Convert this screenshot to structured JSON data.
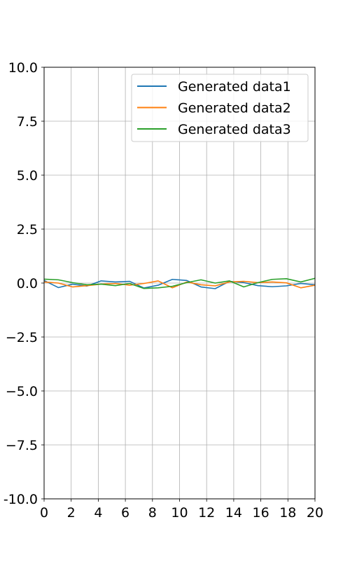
{
  "chart_data": {
    "type": "line",
    "xlim": [
      0,
      20
    ],
    "ylim": [
      -10,
      10
    ],
    "x_ticks": [
      0,
      2,
      4,
      6,
      8,
      10,
      12,
      14,
      16,
      18,
      20
    ],
    "y_ticks": [
      10.0,
      7.5,
      5.0,
      2.5,
      0.0,
      -2.5,
      -5.0,
      -7.5,
      -10.0
    ],
    "x_tick_labels": [
      "0",
      "2",
      "4",
      "6",
      "8",
      "10",
      "12",
      "14",
      "16",
      "18",
      "20"
    ],
    "y_tick_labels": [
      "10.0",
      "7.5",
      "5.0",
      "2.5",
      "0.0",
      "−2.5",
      "−5.0",
      "−7.5",
      "-10.0"
    ],
    "grid": true,
    "legend_position": "top-right",
    "x": [
      0,
      1.05,
      2.1,
      3.16,
      4.21,
      5.26,
      6.32,
      7.37,
      8.42,
      9.47,
      10.53,
      11.58,
      12.63,
      13.68,
      14.74,
      15.79,
      16.84,
      17.89,
      18.95,
      20
    ],
    "series": [
      {
        "name": "Generated data1",
        "color": "#1f77b4",
        "values": [
          0.12,
          -0.21,
          -0.05,
          -0.14,
          0.1,
          0.05,
          0.08,
          -0.23,
          -0.1,
          0.17,
          0.12,
          -0.18,
          -0.26,
          0.08,
          0.02,
          -0.12,
          -0.17,
          -0.13,
          -0.02,
          -0.08
        ]
      },
      {
        "name": "Generated data2",
        "color": "#ff7f0e",
        "values": [
          0.05,
          0.0,
          -0.18,
          -0.12,
          -0.05,
          -0.02,
          -0.1,
          -0.02,
          0.1,
          -0.22,
          0.05,
          -0.08,
          -0.13,
          0.05,
          0.08,
          0.02,
          0.05,
          0.01,
          -0.22,
          -0.1
        ]
      },
      {
        "name": "Generated data3",
        "color": "#2ca02c",
        "values": [
          0.18,
          0.15,
          0.02,
          -0.08,
          -0.05,
          -0.12,
          -0.02,
          -0.25,
          -0.22,
          -0.15,
          0.02,
          0.15,
          0.0,
          0.1,
          -0.18,
          0.02,
          0.17,
          0.2,
          0.05,
          0.22
        ]
      }
    ]
  }
}
